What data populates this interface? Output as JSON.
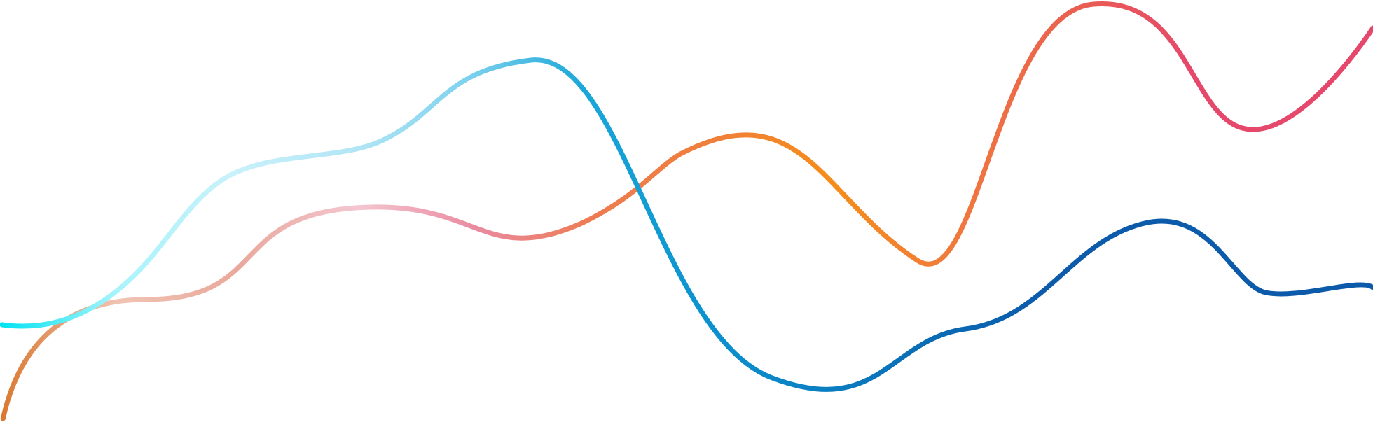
{
  "artwork": {
    "background": "#ffffff",
    "lines": [
      {
        "id": "warm-wave",
        "colors": [
          "#d9782e",
          "#f0c4b3",
          "#e9a89c",
          "#f4c6d0",
          "#e98aa0",
          "#ee7b50",
          "#f07f3a",
          "#f68d1a",
          "#f07a3c",
          "#ea6050",
          "#e5486b"
        ]
      },
      {
        "id": "cool-wave",
        "colors": [
          "#00e2f2",
          "#a8f4fb",
          "#c9f1fa",
          "#b3e6f6",
          "#7fd2ee",
          "#1aa7d8",
          "#0b93cf",
          "#0a7fc2",
          "#0a6bb5",
          "#0c5aaa"
        ]
      }
    ]
  }
}
